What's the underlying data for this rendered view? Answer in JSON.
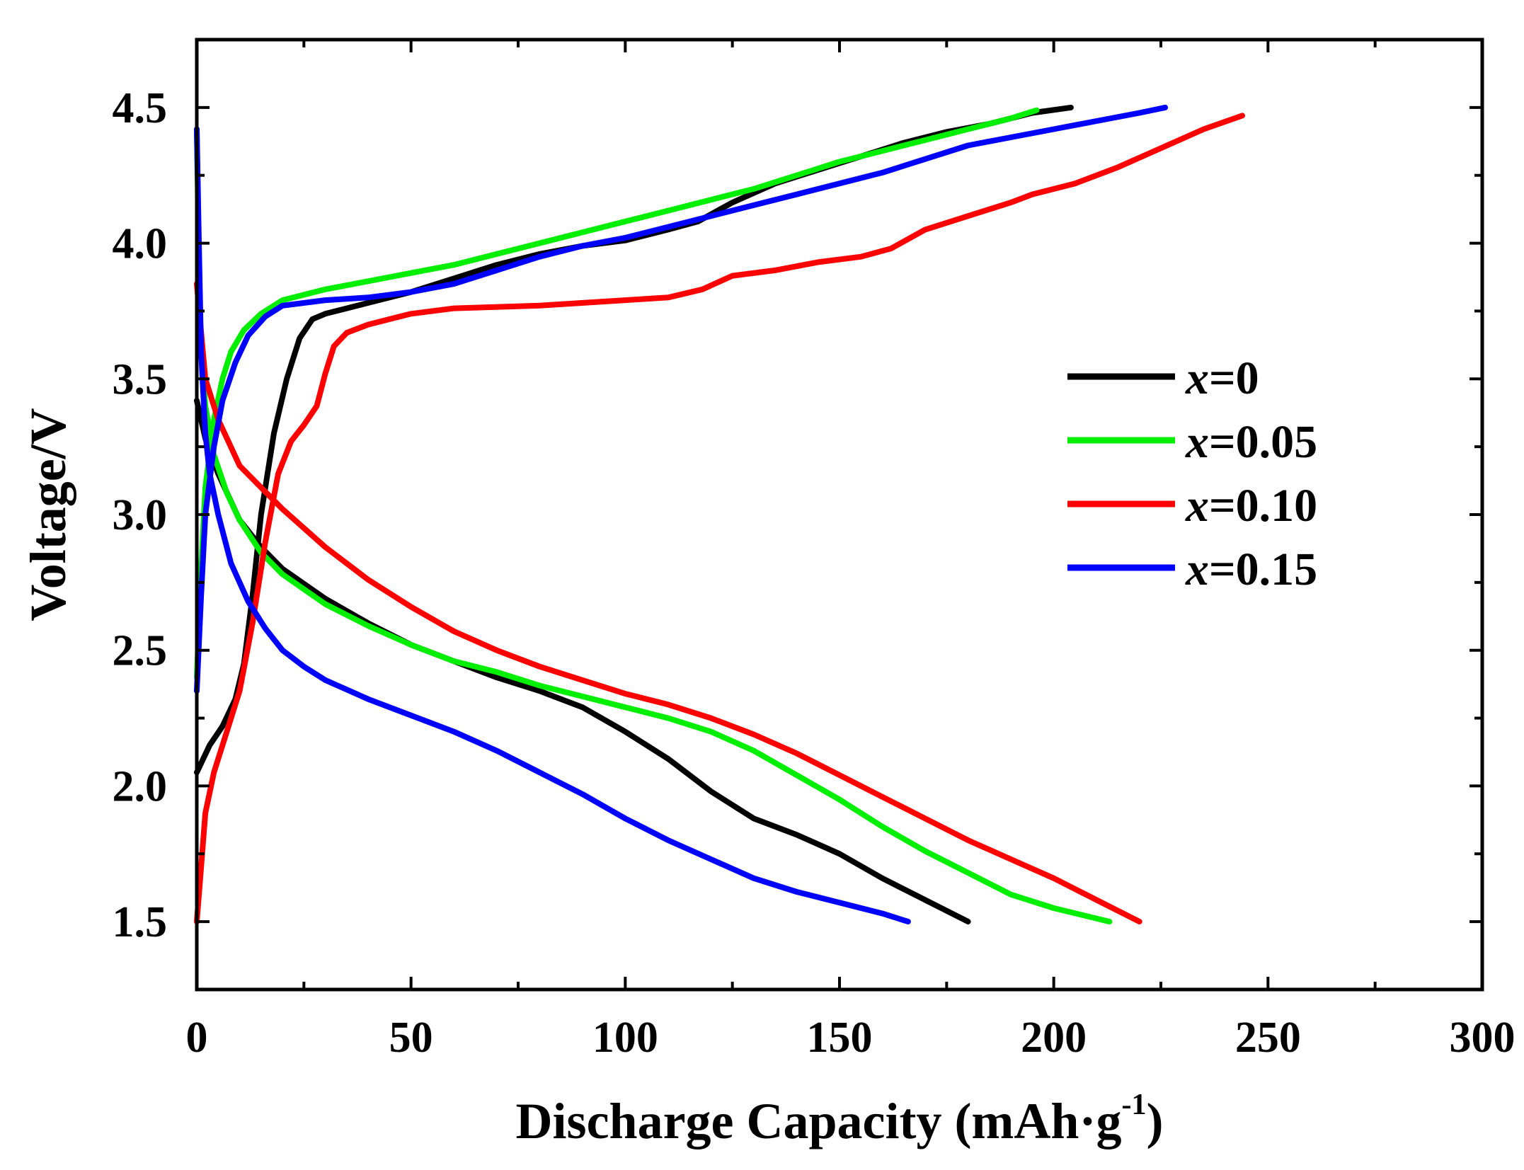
{
  "chart_data": {
    "type": "line",
    "title": "",
    "xlabel": "Discharge Capacity (mAh·g",
    "xlabel_sup": "-1",
    "xlabel_suffix": ")",
    "ylabel": "Voltage/V",
    "xlim": [
      0,
      300
    ],
    "ylim": [
      1.25,
      4.75
    ],
    "xticks": [
      "0",
      "50",
      "100",
      "150",
      "200",
      "250",
      "300"
    ],
    "yticks": [
      "1.5",
      "2.0",
      "2.5",
      "3.0",
      "3.5",
      "4.0",
      "4.5"
    ],
    "legend_position": "right-center",
    "series": [
      {
        "name": "x=0",
        "var": "x",
        "eq": "=0",
        "color": "#000000",
        "charge": [
          [
            0,
            2.05
          ],
          [
            3,
            2.15
          ],
          [
            6,
            2.22
          ],
          [
            9,
            2.32
          ],
          [
            11,
            2.45
          ],
          [
            13,
            2.7
          ],
          [
            15,
            3.0
          ],
          [
            18,
            3.3
          ],
          [
            21,
            3.5
          ],
          [
            24,
            3.65
          ],
          [
            27,
            3.72
          ],
          [
            30,
            3.74
          ],
          [
            35,
            3.76
          ],
          [
            40,
            3.78
          ],
          [
            50,
            3.82
          ],
          [
            60,
            3.87
          ],
          [
            70,
            3.92
          ],
          [
            80,
            3.96
          ],
          [
            90,
            3.99
          ],
          [
            100,
            4.01
          ],
          [
            110,
            4.05
          ],
          [
            117,
            4.08
          ],
          [
            125,
            4.15
          ],
          [
            135,
            4.22
          ],
          [
            145,
            4.27
          ],
          [
            155,
            4.32
          ],
          [
            165,
            4.37
          ],
          [
            175,
            4.41
          ],
          [
            185,
            4.44
          ],
          [
            195,
            4.48
          ],
          [
            204,
            4.5
          ]
        ],
        "discharge": [
          [
            0,
            3.42
          ],
          [
            2,
            3.28
          ],
          [
            5,
            3.15
          ],
          [
            10,
            2.98
          ],
          [
            15,
            2.88
          ],
          [
            20,
            2.8
          ],
          [
            30,
            2.69
          ],
          [
            40,
            2.6
          ],
          [
            50,
            2.52
          ],
          [
            60,
            2.46
          ],
          [
            70,
            2.4
          ],
          [
            80,
            2.35
          ],
          [
            90,
            2.29
          ],
          [
            100,
            2.2
          ],
          [
            110,
            2.1
          ],
          [
            120,
            1.98
          ],
          [
            130,
            1.88
          ],
          [
            140,
            1.82
          ],
          [
            150,
            1.75
          ],
          [
            160,
            1.66
          ],
          [
            170,
            1.58
          ],
          [
            180,
            1.5
          ]
        ]
      },
      {
        "name": "x=0.05",
        "var": "x",
        "eq": "=0.05",
        "color": "#00ee00",
        "charge": [
          [
            0,
            2.4
          ],
          [
            1,
            2.8
          ],
          [
            2,
            3.1
          ],
          [
            4,
            3.35
          ],
          [
            6,
            3.5
          ],
          [
            8,
            3.6
          ],
          [
            11,
            3.68
          ],
          [
            15,
            3.74
          ],
          [
            20,
            3.79
          ],
          [
            30,
            3.83
          ],
          [
            40,
            3.86
          ],
          [
            50,
            3.89
          ],
          [
            60,
            3.92
          ],
          [
            70,
            3.96
          ],
          [
            80,
            4.0
          ],
          [
            90,
            4.04
          ],
          [
            100,
            4.08
          ],
          [
            110,
            4.12
          ],
          [
            120,
            4.16
          ],
          [
            130,
            4.2
          ],
          [
            140,
            4.25
          ],
          [
            150,
            4.3
          ],
          [
            160,
            4.34
          ],
          [
            170,
            4.38
          ],
          [
            180,
            4.42
          ],
          [
            190,
            4.46
          ],
          [
            196,
            4.49
          ]
        ],
        "discharge": [
          [
            0,
            4.42
          ],
          [
            0.5,
            3.9
          ],
          [
            1,
            3.6
          ],
          [
            2,
            3.4
          ],
          [
            4,
            3.22
          ],
          [
            7,
            3.08
          ],
          [
            10,
            2.98
          ],
          [
            15,
            2.86
          ],
          [
            20,
            2.78
          ],
          [
            30,
            2.67
          ],
          [
            40,
            2.59
          ],
          [
            50,
            2.52
          ],
          [
            60,
            2.46
          ],
          [
            70,
            2.42
          ],
          [
            80,
            2.37
          ],
          [
            90,
            2.33
          ],
          [
            100,
            2.29
          ],
          [
            110,
            2.25
          ],
          [
            120,
            2.2
          ],
          [
            130,
            2.13
          ],
          [
            140,
            2.04
          ],
          [
            150,
            1.95
          ],
          [
            160,
            1.85
          ],
          [
            170,
            1.76
          ],
          [
            180,
            1.68
          ],
          [
            190,
            1.6
          ],
          [
            200,
            1.55
          ],
          [
            213,
            1.5
          ]
        ]
      },
      {
        "name": "x=0.10",
        "var": "x",
        "eq": "=0.10",
        "color": "#ff0000",
        "charge": [
          [
            0,
            1.5
          ],
          [
            1,
            1.7
          ],
          [
            2,
            1.9
          ],
          [
            4,
            2.05
          ],
          [
            7,
            2.2
          ],
          [
            10,
            2.35
          ],
          [
            13,
            2.6
          ],
          [
            16,
            2.9
          ],
          [
            19,
            3.15
          ],
          [
            22,
            3.27
          ],
          [
            25,
            3.33
          ],
          [
            28,
            3.4
          ],
          [
            30,
            3.52
          ],
          [
            32,
            3.62
          ],
          [
            35,
            3.67
          ],
          [
            40,
            3.7
          ],
          [
            45,
            3.72
          ],
          [
            50,
            3.74
          ],
          [
            60,
            3.76
          ],
          [
            80,
            3.77
          ],
          [
            100,
            3.79
          ],
          [
            110,
            3.8
          ],
          [
            118,
            3.83
          ],
          [
            125,
            3.88
          ],
          [
            135,
            3.9
          ],
          [
            145,
            3.93
          ],
          [
            155,
            3.95
          ],
          [
            162,
            3.98
          ],
          [
            170,
            4.05
          ],
          [
            180,
            4.1
          ],
          [
            190,
            4.15
          ],
          [
            195,
            4.18
          ],
          [
            205,
            4.22
          ],
          [
            215,
            4.28
          ],
          [
            225,
            4.35
          ],
          [
            235,
            4.42
          ],
          [
            244,
            4.47
          ]
        ],
        "discharge": [
          [
            0,
            3.85
          ],
          [
            2,
            3.5
          ],
          [
            5,
            3.35
          ],
          [
            10,
            3.18
          ],
          [
            20,
            3.02
          ],
          [
            30,
            2.88
          ],
          [
            40,
            2.76
          ],
          [
            50,
            2.66
          ],
          [
            60,
            2.57
          ],
          [
            70,
            2.5
          ],
          [
            80,
            2.44
          ],
          [
            90,
            2.39
          ],
          [
            100,
            2.34
          ],
          [
            110,
            2.3
          ],
          [
            120,
            2.25
          ],
          [
            130,
            2.19
          ],
          [
            140,
            2.12
          ],
          [
            150,
            2.04
          ],
          [
            160,
            1.96
          ],
          [
            170,
            1.88
          ],
          [
            180,
            1.8
          ],
          [
            190,
            1.73
          ],
          [
            200,
            1.66
          ],
          [
            210,
            1.58
          ],
          [
            220,
            1.5
          ]
        ]
      },
      {
        "name": "x=0.15",
        "var": "x",
        "eq": "=0.15",
        "color": "#0000ff",
        "charge": [
          [
            0,
            2.35
          ],
          [
            1,
            2.7
          ],
          [
            2,
            3.0
          ],
          [
            4,
            3.25
          ],
          [
            6,
            3.42
          ],
          [
            9,
            3.56
          ],
          [
            12,
            3.66
          ],
          [
            16,
            3.73
          ],
          [
            20,
            3.77
          ],
          [
            30,
            3.79
          ],
          [
            40,
            3.8
          ],
          [
            50,
            3.82
          ],
          [
            60,
            3.85
          ],
          [
            70,
            3.9
          ],
          [
            80,
            3.95
          ],
          [
            90,
            3.99
          ],
          [
            100,
            4.02
          ],
          [
            110,
            4.06
          ],
          [
            120,
            4.1
          ],
          [
            130,
            4.14
          ],
          [
            140,
            4.18
          ],
          [
            150,
            4.22
          ],
          [
            160,
            4.26
          ],
          [
            170,
            4.31
          ],
          [
            180,
            4.36
          ],
          [
            190,
            4.39
          ],
          [
            200,
            4.42
          ],
          [
            210,
            4.45
          ],
          [
            220,
            4.48
          ],
          [
            226,
            4.5
          ]
        ],
        "discharge": [
          [
            0,
            4.42
          ],
          [
            0.5,
            4.0
          ],
          [
            1,
            3.6
          ],
          [
            2,
            3.3
          ],
          [
            3,
            3.15
          ],
          [
            5,
            3.0
          ],
          [
            8,
            2.82
          ],
          [
            12,
            2.68
          ],
          [
            16,
            2.58
          ],
          [
            20,
            2.5
          ],
          [
            25,
            2.44
          ],
          [
            30,
            2.39
          ],
          [
            40,
            2.32
          ],
          [
            50,
            2.26
          ],
          [
            60,
            2.2
          ],
          [
            70,
            2.13
          ],
          [
            80,
            2.05
          ],
          [
            90,
            1.97
          ],
          [
            100,
            1.88
          ],
          [
            110,
            1.8
          ],
          [
            120,
            1.73
          ],
          [
            130,
            1.66
          ],
          [
            140,
            1.61
          ],
          [
            150,
            1.57
          ],
          [
            160,
            1.53
          ],
          [
            166,
            1.5
          ]
        ]
      }
    ]
  }
}
